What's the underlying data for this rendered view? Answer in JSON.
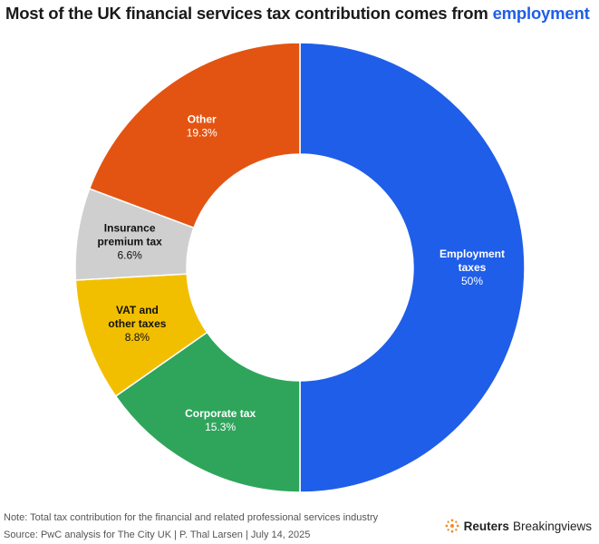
{
  "title": {
    "prefix": "Most of the UK financial services tax contribution comes from ",
    "highlight": "employment"
  },
  "chart_data": {
    "type": "pie",
    "style": "donut",
    "title": "Most of the UK financial services tax contribution comes from employment",
    "slices": [
      {
        "name": "Employment taxes",
        "label_lines": [
          "Employment",
          "taxes"
        ],
        "value": 50.0,
        "value_label": "50%",
        "color": "#1f5ee8"
      },
      {
        "name": "Corporate tax",
        "label_lines": [
          "Corporate tax"
        ],
        "value": 15.3,
        "value_label": "15.3%",
        "color": "#2ea55b"
      },
      {
        "name": "VAT and other taxes",
        "label_lines": [
          "VAT and",
          "other taxes"
        ],
        "value": 8.8,
        "value_label": "8.8%",
        "color": "#f2bf00"
      },
      {
        "name": "Insurance premium tax",
        "label_lines": [
          "Insurance",
          "premium tax"
        ],
        "value": 6.6,
        "value_label": "6.6%",
        "color": "#cfcfcf"
      },
      {
        "name": "Other",
        "label_lines": [
          "Other"
        ],
        "value": 19.3,
        "value_label": "19.3%",
        "color": "#e35412"
      }
    ]
  },
  "footer": {
    "note": "Note: Total tax contribution for the financial and related professional services industry",
    "source": "Source: PwC analysis for The City UK | P. Thal Larsen | July 14, 2025",
    "brand_name": "Reuters",
    "brand_sub": "Breakingviews",
    "brand_icon": "reuters-logo-icon"
  }
}
